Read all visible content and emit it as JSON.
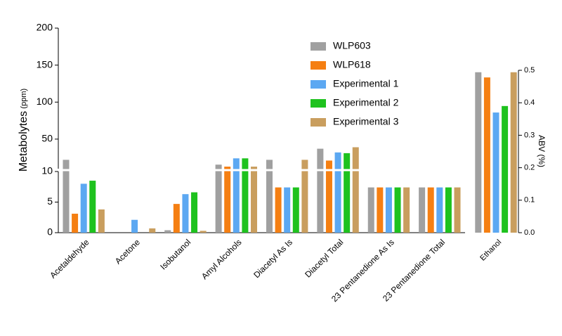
{
  "chart_data": {
    "type": "bar",
    "y_label": "Metabolytes",
    "y_unit": "(ppm)",
    "ylim": [
      0,
      200
    ],
    "y_break": 10,
    "yticks": [
      0,
      5,
      10,
      50,
      100,
      150,
      200
    ],
    "categories": [
      "Acetaldehyde",
      "Acetone",
      "Isobutanol",
      "Amyl Alcohols",
      "Diacetyl As Is",
      "Diacetyl Total",
      "23 Pentanedione As Is",
      "23 Pentanedione Total"
    ],
    "series": [
      {
        "name": "WLP603",
        "color": "#a0a0a0",
        "values": [
          22,
          0,
          0.4,
          15.5,
          22,
          37,
          7.4,
          7.4
        ]
      },
      {
        "name": "WLP618",
        "color": "#f57f12",
        "values": [
          3.1,
          0,
          4.7,
          12.8,
          7.4,
          21,
          7.4,
          7.4
        ]
      },
      {
        "name": "Experimental 1",
        "color": "#5ca8f2",
        "values": [
          8.0,
          2.1,
          6.3,
          24,
          7.4,
          32,
          7.4,
          7.4
        ]
      },
      {
        "name": "Experimental 2",
        "color": "#1ec21e",
        "values": [
          8.5,
          0,
          6.6,
          24,
          7.4,
          31,
          7.4,
          7.4
        ]
      },
      {
        "name": "Experimental 3",
        "color": "#c99e5e",
        "values": [
          3.8,
          0.7,
          0.3,
          12.8,
          22,
          39,
          7.4,
          7.4
        ]
      }
    ],
    "ethanol_panel": {
      "categories": [
        "Ethanol"
      ],
      "y2_label": "ABV (%)",
      "y2lim": [
        0,
        0.5
      ],
      "y2ticks": [
        {
          "value": 0,
          "label": "0.0"
        },
        0.1,
        0.2,
        0.3,
        0.4,
        0.5
      ],
      "values": [
        0.494,
        0.478,
        0.37,
        0.39,
        0.494
      ]
    }
  }
}
